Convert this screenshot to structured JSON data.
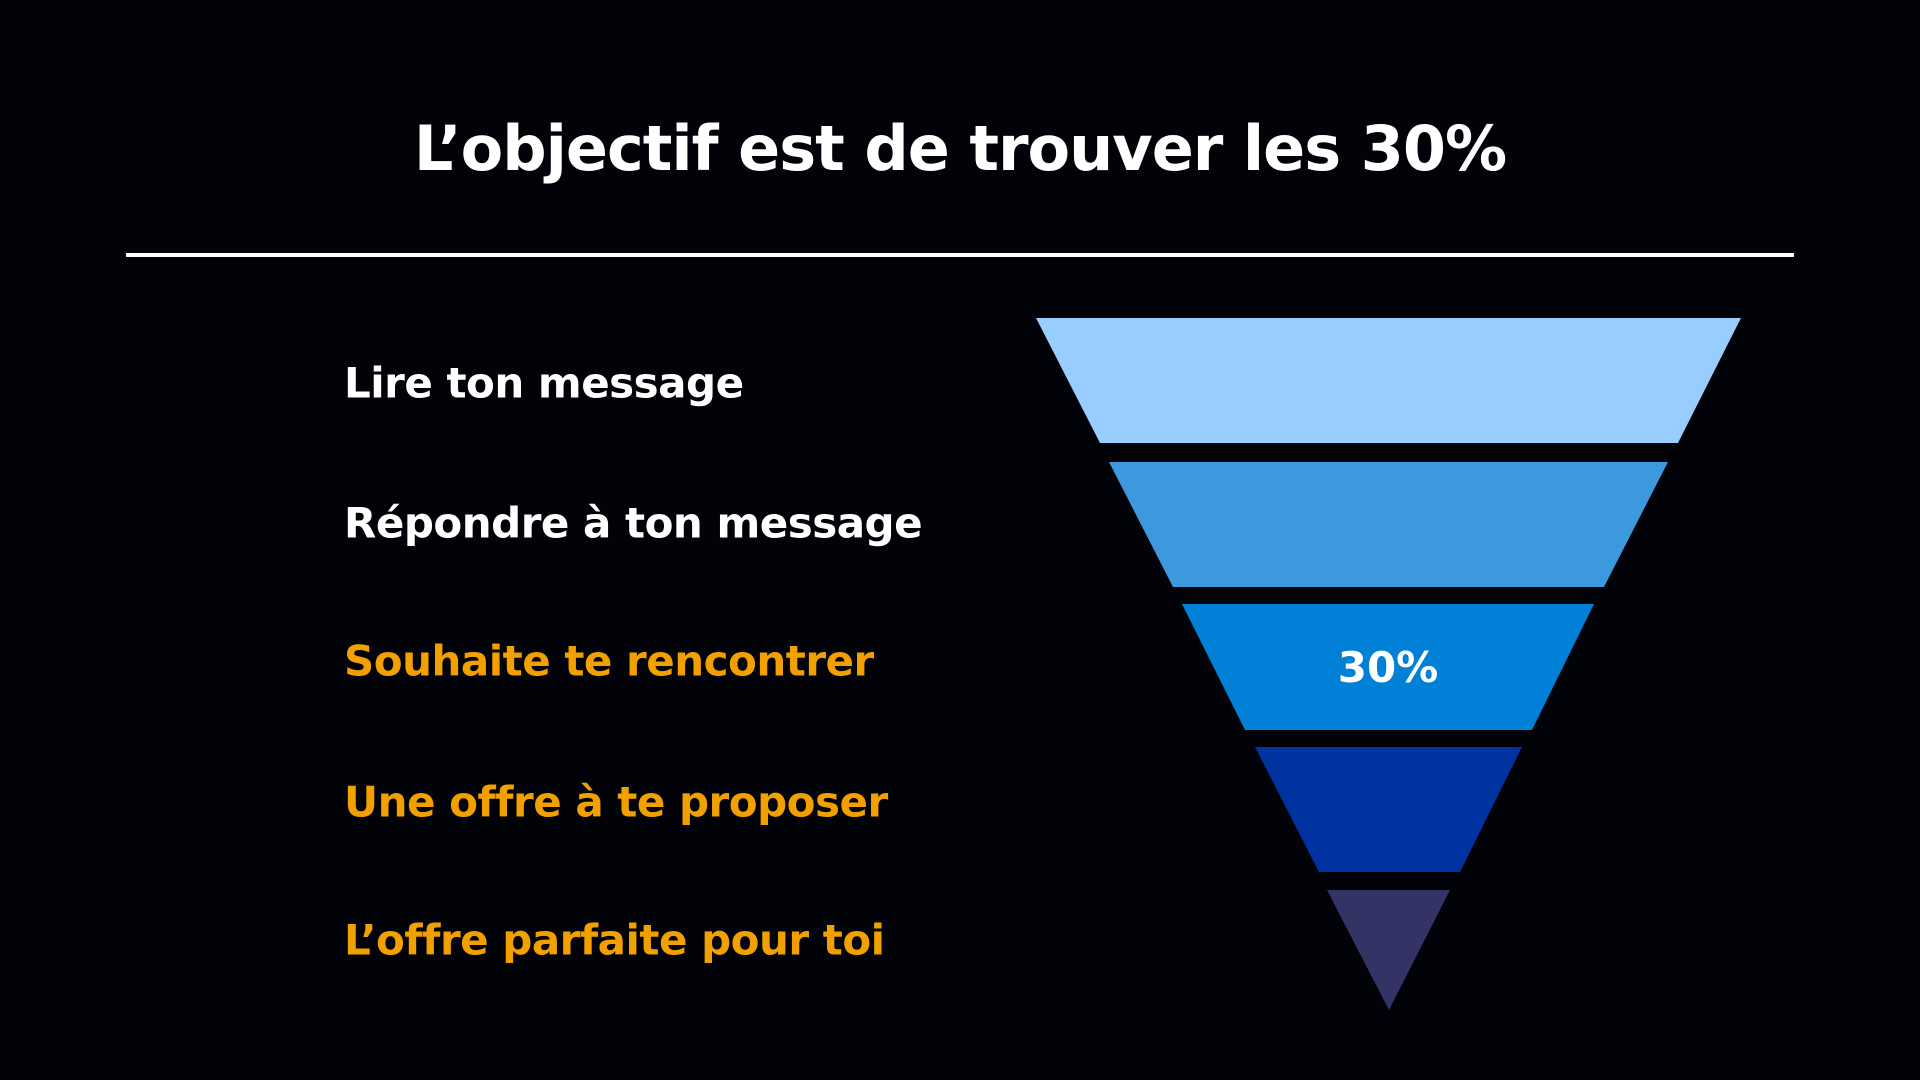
{
  "title": "L’objectif est de trouver les 30%",
  "colors": {
    "background": "#020308",
    "white_text": "#ffffff",
    "highlight_text": "#f2a000"
  },
  "funnel": [
    {
      "label": "Lire ton message",
      "label_color": "#ffffff",
      "fill": "#99ccff",
      "badge": ""
    },
    {
      "label": "Répondre à ton message",
      "label_color": "#ffffff",
      "fill": "#3d99dd",
      "badge": ""
    },
    {
      "label": "Souhaite te rencontrer",
      "label_color": "#f2a000",
      "fill": "#0080d6",
      "badge": "30%"
    },
    {
      "label": "Une offre à te proposer",
      "label_color": "#f2a000",
      "fill": "#0033a0",
      "badge": ""
    },
    {
      "label": "L’offre parfaite pour toi",
      "label_color": "#f2a000",
      "fill": "#333366",
      "badge": ""
    }
  ]
}
